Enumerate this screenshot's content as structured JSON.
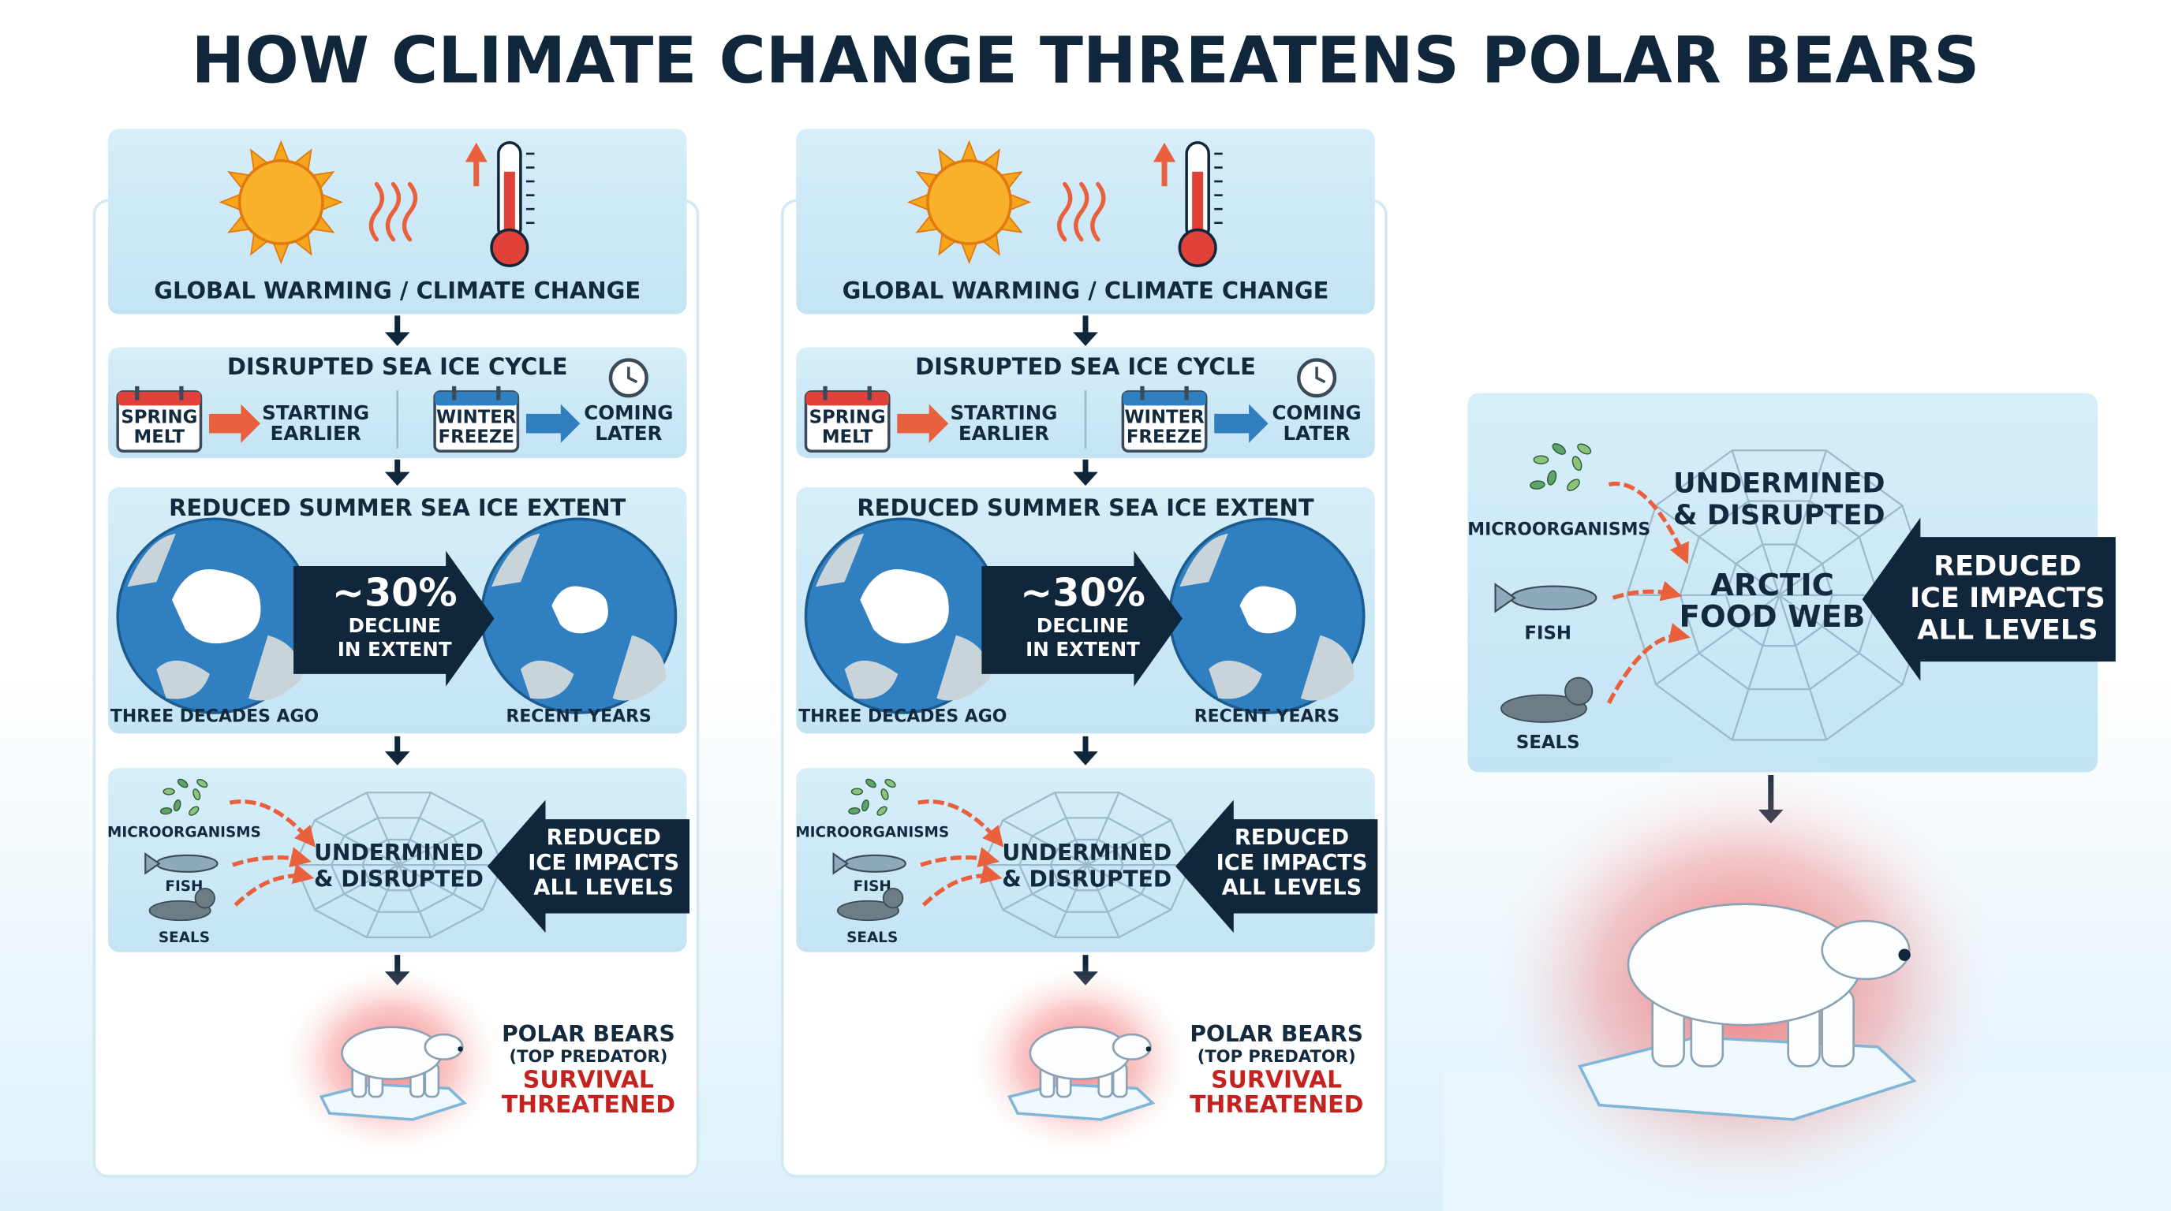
{
  "title": "HOW CLIMATE CHANGE THREATENS POLAR BEARS",
  "columns": [
    {
      "warming": "GLOBAL WARMING / CLIMATE CHANGE",
      "sea_ice_cycle": {
        "title": "DISRUPTED SEA ICE CYCLE",
        "spring": [
          "SPRING",
          "MELT"
        ],
        "spring_effect": [
          "STARTING",
          "EARLIER"
        ],
        "winter": [
          "WINTER",
          "FREEZE"
        ],
        "winter_effect": [
          "COMING",
          "LATER"
        ]
      },
      "extent": {
        "title": "REDUCED SUMMER SEA ICE EXTENT",
        "change": "~30%",
        "change_text": [
          "DECLINE",
          "IN EXTENT"
        ],
        "before": "THREE DECADES AGO",
        "after": "RECENT YEARS"
      },
      "food_web": {
        "microorganisms": "MICROORGANISMS",
        "fish": "FISH",
        "seals": "SEALS",
        "status": [
          "UNDERMINED",
          "& DISRUPTED"
        ],
        "impact": [
          "REDUCED",
          "ICE IMPACTS",
          "ALL LEVELS"
        ]
      },
      "outcome": {
        "subject": "POLAR BEARS",
        "role": "(TOP PREDATOR)",
        "status": [
          "SURVIVAL",
          "THREATENED"
        ]
      }
    },
    {
      "warming": "GLOBAL WARMING / CLIMATE CHANGE",
      "sea_ice_cycle": {
        "title": "DISRUPTED SEA ICE CYCLE",
        "spring": [
          "SPRING",
          "MELT"
        ],
        "spring_effect": [
          "STARTING",
          "EARLIER"
        ],
        "winter": [
          "WINTER",
          "FREEZE"
        ],
        "winter_effect": [
          "COMING",
          "LATER"
        ]
      },
      "extent": {
        "title": "REDUCED SUMMER SEA ICE EXTENT",
        "change": "~30%",
        "change_text": [
          "DECLINE",
          "IN EXTENT"
        ],
        "before": "THREE DECADES AGO",
        "after": "RECENT YEARS"
      },
      "food_web": {
        "microorganisms": "MICROORGANISMS",
        "fish": "FISH",
        "seals": "SEALS",
        "status": [
          "UNDERMINED",
          "& DISRUPTED"
        ],
        "impact": [
          "REDUCED",
          "ICE IMPACTS",
          "ALL LEVELS"
        ]
      },
      "outcome": {
        "subject": "POLAR BEARS",
        "role": "(TOP PREDATOR)",
        "status": [
          "SURVIVAL",
          "THREATENED"
        ]
      }
    }
  ],
  "food_web_panel": {
    "microorganisms": "MICROORGANISMS",
    "fish": "FISH",
    "seals": "SEALS",
    "status": [
      "UNDERMINED",
      "& DISRUPTED"
    ],
    "web": [
      "ARCTIC",
      "FOOD WEB"
    ],
    "impact": [
      "REDUCED",
      "ICE IMPACTS",
      "ALL LEVELS"
    ]
  }
}
